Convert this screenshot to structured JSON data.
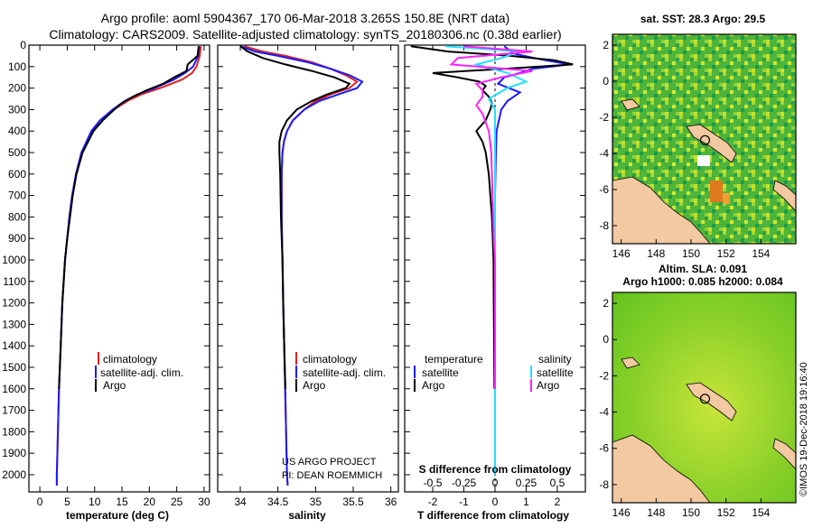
{
  "header": {
    "line1": "Argo profile: aoml 5904367_170 06-Mar-2018 3.265S 150.8E (NRT data)",
    "line2": "Climatology: CARS2009. Satellite-adjusted climatology: synTS_20180306.nc (0.38d earlier)"
  },
  "footer": {
    "project": "US ARGO PROJECT",
    "pi": "PI: DEAN ROEMMICH",
    "credit": "©IMOS 19-Dec-2018 19:16:40"
  },
  "colors": {
    "climatology": "#e02020",
    "satellite": "#1a1aff",
    "argo": "#000000",
    "sal_satellite": "#22e0ff",
    "sal_argo": "#ff22ff",
    "land": "#f2c9a0"
  },
  "chart_data": [
    {
      "type": "line",
      "name": "temperature",
      "xlabel": "temperature (deg C)",
      "ylabel": "",
      "xlim": [
        -2,
        31
      ],
      "ylim": [
        2080,
        0
      ],
      "xticks": [
        0,
        5,
        10,
        15,
        20,
        25,
        30
      ],
      "yticks": [
        0,
        100,
        200,
        300,
        400,
        500,
        600,
        700,
        800,
        900,
        1000,
        1100,
        1200,
        1300,
        1400,
        1500,
        1600,
        1700,
        1800,
        1900,
        2000
      ],
      "legend": [
        "climatology",
        "satellite-adj. clim.",
        "Argo"
      ],
      "series": [
        {
          "name": "climatology",
          "key": "climatology",
          "depth": [
            5,
            50,
            100,
            130,
            160,
            200,
            230,
            260,
            300,
            350,
            400,
            500,
            600,
            700,
            800,
            900,
            1000,
            1200,
            1400,
            1600,
            1800,
            2000,
            2050
          ],
          "values": [
            29.4,
            29.2,
            28.6,
            27.8,
            26.0,
            22.0,
            18.5,
            16.0,
            13.5,
            11.0,
            9.5,
            7.6,
            6.6,
            5.9,
            5.4,
            5.0,
            4.6,
            4.1,
            3.8,
            3.5,
            3.3,
            3.1,
            3.1
          ]
        },
        {
          "name": "satellite-adj. clim.",
          "key": "satellite",
          "depth": [
            5,
            50,
            100,
            130,
            160,
            200,
            230,
            260,
            300,
            350,
            400,
            500,
            600,
            700,
            800,
            900,
            1000,
            1200,
            1400,
            1600,
            1800,
            2000,
            2050
          ],
          "values": [
            29.1,
            28.9,
            28.0,
            26.5,
            24.5,
            21.0,
            17.8,
            15.5,
            13.3,
            11.0,
            9.4,
            7.6,
            6.6,
            5.9,
            5.4,
            5.0,
            4.6,
            4.1,
            3.8,
            3.5,
            3.3,
            3.1,
            3.1
          ]
        },
        {
          "name": "Argo",
          "key": "argo",
          "depth": [
            5,
            50,
            90,
            120,
            150,
            180,
            210,
            240,
            270,
            300,
            350,
            400,
            500,
            600,
            700,
            800,
            900,
            1000,
            1200,
            1400,
            1600
          ],
          "values": [
            29.0,
            28.8,
            27.0,
            26.8,
            24.5,
            22.5,
            19.5,
            17.0,
            15.0,
            13.6,
            11.5,
            9.8,
            7.8,
            6.7,
            6.0,
            5.5,
            5.0,
            4.6,
            4.1,
            3.8,
            3.5
          ]
        }
      ]
    },
    {
      "type": "line",
      "name": "salinity",
      "xlabel": "salinity",
      "ylabel": "",
      "xlim": [
        33.7,
        36.1
      ],
      "ylim": [
        2080,
        0
      ],
      "xticks": [
        34,
        34.5,
        35,
        35.5,
        36
      ],
      "legend": [
        "climatology",
        "satellite-adj. clim.",
        "Argo"
      ],
      "series": [
        {
          "name": "climatology",
          "key": "climatology",
          "depth": [
            5,
            30,
            50,
            80,
            110,
            140,
            170,
            200,
            230,
            260,
            300,
            350,
            400,
            450,
            500,
            600,
            800,
            1000,
            1200,
            1500,
            2000,
            2050
          ],
          "values": [
            34.05,
            34.3,
            34.6,
            34.95,
            35.2,
            35.4,
            35.55,
            35.45,
            35.2,
            35.0,
            34.85,
            34.7,
            34.62,
            34.58,
            34.56,
            34.55,
            34.55,
            34.56,
            34.57,
            34.59,
            34.62,
            34.63
          ]
        },
        {
          "name": "satellite-adj. clim.",
          "key": "satellite",
          "depth": [
            5,
            30,
            50,
            80,
            110,
            140,
            170,
            200,
            230,
            260,
            300,
            350,
            400,
            450,
            500,
            600,
            800,
            1000,
            1200,
            1500,
            2000,
            2050
          ],
          "values": [
            34.0,
            34.2,
            34.5,
            34.9,
            35.2,
            35.45,
            35.62,
            35.55,
            35.3,
            35.05,
            34.85,
            34.7,
            34.62,
            34.58,
            34.56,
            34.55,
            34.55,
            34.56,
            34.57,
            34.59,
            34.62,
            34.63
          ]
        },
        {
          "name": "Argo",
          "key": "argo",
          "depth": [
            5,
            30,
            60,
            90,
            120,
            150,
            180,
            200,
            230,
            260,
            300,
            350,
            400,
            450,
            500,
            600,
            800,
            1000,
            1200,
            1500,
            1600
          ],
          "values": [
            34.0,
            34.1,
            34.3,
            34.6,
            34.95,
            35.25,
            35.45,
            35.4,
            35.15,
            34.95,
            34.75,
            34.62,
            34.55,
            34.52,
            34.52,
            34.53,
            34.54,
            34.56,
            34.57,
            34.59,
            34.6
          ]
        }
      ]
    },
    {
      "type": "line",
      "name": "difference from climatology",
      "xlabel": "T difference from climatology",
      "xlabel2": "S difference from climatology",
      "xlim": [
        -2.9,
        2.9
      ],
      "ylim": [
        2080,
        0
      ],
      "xticks": [
        -2,
        -1,
        0,
        1,
        2
      ],
      "sticks": [
        -0.5,
        -0.25,
        0,
        0.25,
        0.5
      ],
      "slim": [
        -0.725,
        0.725
      ],
      "legend_titles": {
        "temperature": "temperature",
        "salinity": "salinity"
      },
      "legend": [
        "satellite",
        "Argo",
        "satellite",
        "Argo"
      ],
      "series": [
        {
          "name": "T satellite",
          "key": "satellite",
          "axis": "T",
          "depth": [
            5,
            40,
            70,
            90,
            110,
            130,
            150,
            180,
            220,
            260,
            300,
            400,
            500,
            700,
            1000,
            1500,
            2000
          ],
          "values": [
            0.3,
            0.6,
            1.6,
            2.4,
            1.2,
            0.8,
            0.3,
            0.1,
            0.8,
            0.4,
            0.2,
            0.05,
            0.03,
            0.0,
            0.0,
            0.0,
            0.0
          ]
        },
        {
          "name": "T Argo",
          "key": "argo",
          "axis": "T",
          "depth": [
            5,
            30,
            50,
            70,
            90,
            110,
            130,
            150,
            170,
            190,
            210,
            240,
            270,
            300,
            350,
            400,
            450,
            500,
            600,
            700,
            800,
            1000,
            1200,
            1400,
            1600
          ],
          "values": [
            -2.7,
            -1.5,
            0.5,
            1.9,
            2.5,
            0.3,
            -2.0,
            -1.2,
            -0.5,
            -0.3,
            -0.4,
            -0.2,
            -0.1,
            -0.15,
            -0.3,
            -0.6,
            -0.4,
            -0.3,
            -0.2,
            -0.15,
            -0.1,
            -0.05,
            -0.04,
            -0.03,
            -0.02
          ]
        },
        {
          "name": "S satellite",
          "key": "sal_satellite",
          "axis": "S",
          "depth": [
            5,
            30,
            60,
            90,
            130,
            170,
            200,
            250,
            300,
            400,
            500,
            600,
            800,
            1000,
            1500,
            2000
          ],
          "values": [
            -0.4,
            0.2,
            0.05,
            -0.15,
            0.1,
            0.25,
            0.1,
            -0.05,
            0.0,
            0.0,
            0.0,
            0.0,
            0.0,
            0.0,
            0.0,
            0.0
          ]
        },
        {
          "name": "S Argo",
          "key": "sal_argo",
          "axis": "S",
          "depth": [
            5,
            30,
            60,
            90,
            120,
            150,
            180,
            210,
            240,
            280,
            320,
            400,
            500,
            700,
            900,
            1000,
            1200,
            1500,
            1600
          ],
          "values": [
            -0.25,
            0.3,
            -0.3,
            -0.35,
            0.3,
            0.05,
            -0.15,
            -0.1,
            -0.1,
            -0.15,
            -0.1,
            -0.05,
            -0.03,
            -0.02,
            -0.01,
            0.0,
            0.0,
            0.0,
            0.0
          ]
        }
      ]
    },
    {
      "type": "heatmap",
      "name": "sst",
      "title": "sat. SST: 28.3 Argo: 29.5",
      "xlim": [
        145.5,
        156
      ],
      "ylim": [
        -9,
        2.6
      ],
      "xticks": [
        146,
        148,
        150,
        152,
        154
      ],
      "yticks": [
        2,
        0,
        -2,
        -4,
        -6,
        -8
      ],
      "marker": {
        "lon": 150.8,
        "lat": -3.265
      }
    },
    {
      "type": "heatmap",
      "name": "sla",
      "title": "Altim. SLA: 0.091",
      "subtitle": "Argo h1000: 0.085 h2000: 0.084",
      "xlim": [
        145.5,
        156
      ],
      "ylim": [
        -9,
        2.6
      ],
      "xticks": [
        146,
        148,
        150,
        152,
        154
      ],
      "yticks": [
        2,
        0,
        -2,
        -4,
        -6,
        -8
      ],
      "marker": {
        "lon": 150.8,
        "lat": -3.265
      }
    }
  ]
}
